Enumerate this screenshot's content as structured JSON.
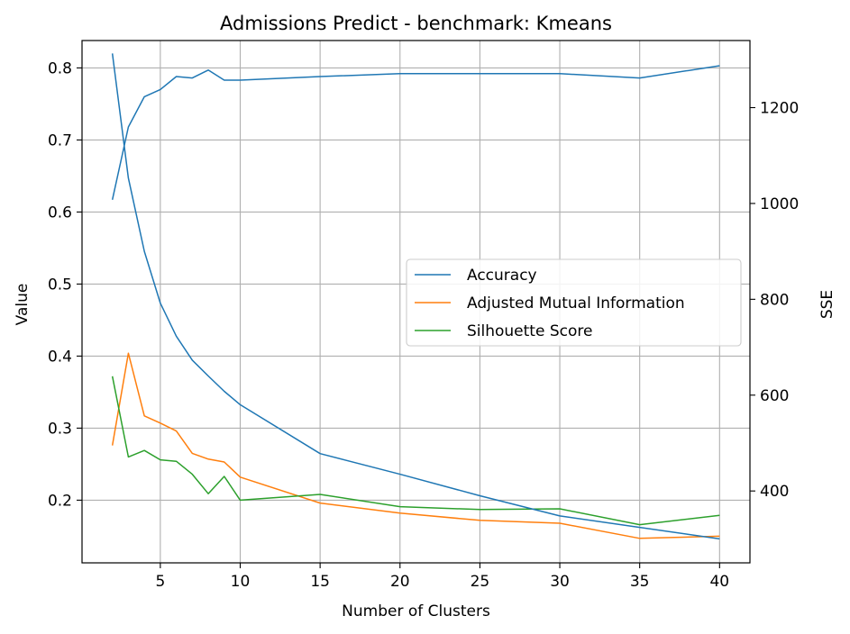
{
  "chart_data": {
    "type": "line",
    "title": "Admissions Predict - benchmark: Kmeans",
    "xlabel": "Number of Clusters",
    "ylabel": "Value",
    "y2label": "SSE",
    "x": [
      2,
      3,
      4,
      5,
      6,
      7,
      8,
      9,
      10,
      15,
      20,
      25,
      30,
      35,
      40
    ],
    "xticks": [
      5,
      10,
      15,
      20,
      25,
      30,
      35,
      40
    ],
    "xlim": [
      0.1,
      41.9
    ],
    "ylim": [
      0.113,
      0.838
    ],
    "yticks": [
      0.2,
      0.3,
      0.4,
      0.5,
      0.6,
      0.7,
      0.8
    ],
    "y2lim": [
      250,
      1340
    ],
    "y2ticks": [
      400,
      600,
      800,
      1000,
      1200
    ],
    "grid": true,
    "legend_position": "center-right",
    "series": [
      {
        "name": "Accuracy",
        "color": "#1f77b4",
        "axis": "left",
        "values": [
          0.617,
          0.718,
          0.76,
          0.77,
          0.788,
          0.786,
          0.797,
          0.783,
          0.783,
          0.788,
          0.792,
          0.792,
          0.792,
          0.786,
          0.803
        ]
      },
      {
        "name": "Adjusted Mutual Information",
        "color": "#ff7f0e",
        "axis": "left",
        "values": [
          0.276,
          0.404,
          0.317,
          0.307,
          0.296,
          0.265,
          0.257,
          0.253,
          0.232,
          0.196,
          0.182,
          0.172,
          0.168,
          0.147,
          0.15
        ]
      },
      {
        "name": "Silhouette Score",
        "color": "#2ca02c",
        "axis": "left",
        "values": [
          0.372,
          0.26,
          0.269,
          0.256,
          0.254,
          0.236,
          0.209,
          0.233,
          0.2,
          0.208,
          0.191,
          0.187,
          0.188,
          0.166,
          0.179
        ]
      },
      {
        "name": "SSE",
        "color": "#1f77b4",
        "axis": "right",
        "in_legend": false,
        "values": [
          1313,
          1053,
          900,
          792,
          723,
          673,
          640,
          608,
          580,
          478,
          435,
          390,
          348,
          324,
          300
        ]
      }
    ]
  }
}
